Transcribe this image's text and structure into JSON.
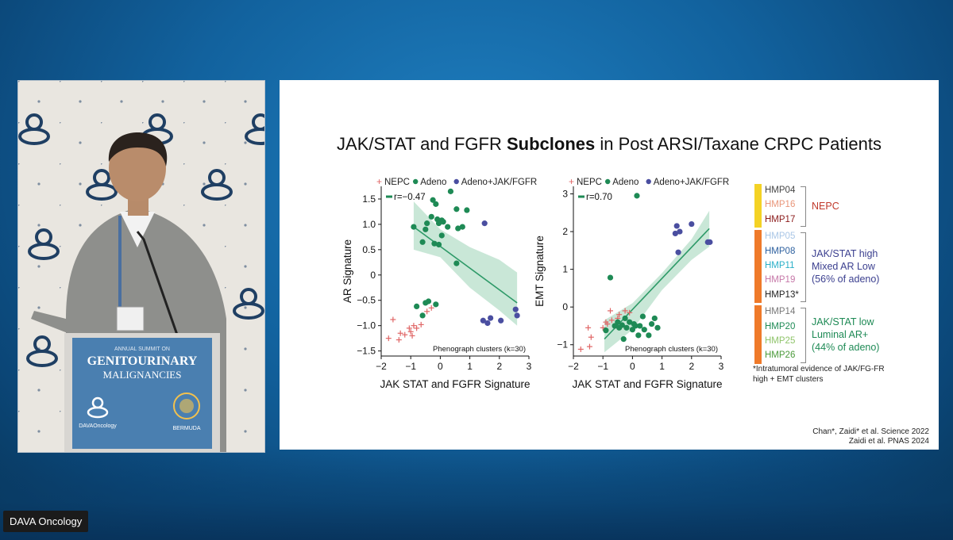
{
  "watermark": "DAVA Oncology",
  "podium": {
    "line1": "ANNUAL SUMMIT ON",
    "line2": "GENITOURINARY",
    "line3": "MALIGNANCIES",
    "logo_left": "DAVAOncology",
    "logo_right": "BERMUDA"
  },
  "slide": {
    "title_pre": "JAK/STAT and FGFR ",
    "title_bold": "Subclones",
    "title_post": " in Post ARSI/Taxane CRPC Patients",
    "footnote": "*Intratumoral evidence of JAK/FG-FR high + EMT clusters",
    "citation1": "Chan*, Zaidi* et al. Science 2022",
    "citation2": "Zaidi et al. PNAS 2024"
  },
  "colors": {
    "nepc": "#e06666",
    "adeno": "#1e8a55",
    "jak": "#4a4ea0",
    "fit": "#2e9a68",
    "band": "#bfe3d0"
  },
  "clusters": [
    {
      "label": "NEPC",
      "color": "#c0392b",
      "bar_color": "#f4d225",
      "items": [
        {
          "id": "HMP04",
          "color": "#444444"
        },
        {
          "id": "HMP16",
          "color": "#e9967a"
        },
        {
          "id": "HMP17",
          "color": "#8b1a1a"
        }
      ]
    },
    {
      "label_lines": [
        "JAK/STAT high",
        "Mixed AR Low",
        "(56% of adeno)"
      ],
      "color": "#3b3f8f",
      "bar_color": "#ef7a2a",
      "items": [
        {
          "id": "HMP05",
          "color": "#a9c6e6"
        },
        {
          "id": "HMP08",
          "color": "#2c5f9e"
        },
        {
          "id": "HMP11",
          "color": "#2ab0c8"
        },
        {
          "id": "HMP19",
          "color": "#c678a8"
        },
        {
          "id": "HMP13*",
          "color": "#222222"
        }
      ]
    },
    {
      "label_lines": [
        "JAK/STAT low",
        "Luminal AR+",
        "(44% of adeno)"
      ],
      "color": "#1e8a55",
      "bar_color": "#ef7a2a",
      "items": [
        {
          "id": "HMP14",
          "color": "#777777"
        },
        {
          "id": "HMP20",
          "color": "#1e8a55"
        },
        {
          "id": "HMP25",
          "color": "#8fc46a"
        },
        {
          "id": "HMP26",
          "color": "#4a9a3a"
        }
      ]
    }
  ],
  "chart_data": [
    {
      "type": "scatter",
      "xlabel": "JAK STAT and FGFR Signature",
      "ylabel": "AR Signature",
      "xlim": [
        -2,
        3
      ],
      "ylim": [
        -1.6,
        1.75
      ],
      "xticks": [
        -2,
        -1,
        0,
        1,
        2,
        3
      ],
      "xtick_labels": [
        "−2",
        "−1",
        "0",
        "1",
        "2",
        "3"
      ],
      "yticks": [
        -1.5,
        -1,
        -0.5,
        0,
        0.5,
        1,
        1.5
      ],
      "ytick_labels": [
        "−1.5",
        "−1.0",
        "−0.5",
        "0",
        "0.5",
        "1.0",
        "1.5"
      ],
      "legend": [
        "NEPC",
        "Adeno",
        "Adeno+JAK/FGFR"
      ],
      "corr_label": "r=−0.47",
      "annotation": "Phenograph clusters (k=30)",
      "fit": {
        "x": [
          -0.9,
          2.6
        ],
        "y": [
          0.95,
          -0.55
        ]
      },
      "band_upper": [
        [
          -0.9,
          1.45
        ],
        [
          0,
          0.9
        ],
        [
          1,
          0.55
        ],
        [
          2,
          0.3
        ],
        [
          2.6,
          0.05
        ]
      ],
      "band_lower": [
        [
          2.6,
          -1.0
        ],
        [
          2,
          -0.7
        ],
        [
          1,
          -0.25
        ],
        [
          0,
          0.35
        ],
        [
          -0.9,
          0.5
        ]
      ],
      "series": [
        {
          "name": "NEPC",
          "marker": "plus",
          "color": "#e06666",
          "points": [
            [
              -1.75,
              -1.25
            ],
            [
              -1.6,
              -0.88
            ],
            [
              -1.4,
              -1.28
            ],
            [
              -1.35,
              -1.15
            ],
            [
              -1.2,
              -1.18
            ],
            [
              -1.05,
              -1.05
            ],
            [
              -1.0,
              -1.12
            ],
            [
              -0.95,
              -1.2
            ],
            [
              -0.9,
              -1.0
            ],
            [
              -0.8,
              -1.05
            ],
            [
              -0.65,
              -0.98
            ],
            [
              -0.45,
              -0.72
            ],
            [
              -0.3,
              -0.65
            ]
          ]
        },
        {
          "name": "Adeno",
          "marker": "dot",
          "color": "#1e8a55",
          "points": [
            [
              0.35,
              1.65
            ],
            [
              -0.25,
              1.48
            ],
            [
              -0.15,
              1.4
            ],
            [
              0.55,
              1.3
            ],
            [
              0.9,
              1.28
            ],
            [
              -0.3,
              1.15
            ],
            [
              -0.1,
              1.1
            ],
            [
              0.05,
              1.08
            ],
            [
              -0.05,
              1.02
            ],
            [
              0.1,
              1.05
            ],
            [
              -0.45,
              1.02
            ],
            [
              -0.9,
              0.95
            ],
            [
              -0.5,
              0.9
            ],
            [
              0.25,
              0.95
            ],
            [
              0.6,
              0.92
            ],
            [
              0.75,
              0.95
            ],
            [
              -0.6,
              0.65
            ],
            [
              -0.2,
              0.62
            ],
            [
              -0.05,
              0.6
            ],
            [
              0.05,
              0.78
            ],
            [
              0.55,
              0.23
            ],
            [
              -0.5,
              -0.55
            ],
            [
              -0.4,
              -0.52
            ],
            [
              -0.15,
              -0.58
            ],
            [
              -0.8,
              -0.62
            ],
            [
              -0.6,
              -0.8
            ]
          ]
        },
        {
          "name": "Adeno+JAK/FGFR",
          "marker": "dot",
          "color": "#4a4ea0",
          "points": [
            [
              1.5,
              1.02
            ],
            [
              1.45,
              -0.9
            ],
            [
              1.6,
              -0.95
            ],
            [
              1.7,
              -0.85
            ],
            [
              2.05,
              -0.9
            ],
            [
              2.55,
              -0.68
            ],
            [
              2.6,
              -0.8
            ]
          ]
        }
      ]
    },
    {
      "type": "scatter",
      "xlabel": "JAK STAT and FGFR Signature",
      "ylabel": "EMT Signature",
      "xlim": [
        -2,
        3
      ],
      "ylim": [
        -1.3,
        3.2
      ],
      "xticks": [
        -2,
        -1,
        0,
        1,
        2,
        3
      ],
      "xtick_labels": [
        "−2",
        "−1",
        "0",
        "1",
        "2",
        "3"
      ],
      "yticks": [
        -1,
        0,
        1,
        2,
        3
      ],
      "ytick_labels": [
        "−1",
        "0",
        "1",
        "2",
        "3"
      ],
      "legend": [
        "NEPC",
        "Adeno",
        "Adeno+JAK/FGFR"
      ],
      "corr_label": "r=0.70",
      "annotation": "Phenograph clusters (k=30)",
      "fit": {
        "x": [
          -0.95,
          2.6
        ],
        "y": [
          -0.85,
          2.08
        ]
      },
      "band_upper": [
        [
          -0.95,
          -0.35
        ],
        [
          0,
          0.1
        ],
        [
          1,
          0.9
        ],
        [
          2,
          1.8
        ],
        [
          2.6,
          2.55
        ]
      ],
      "band_lower": [
        [
          2.6,
          1.6
        ],
        [
          2,
          1.25
        ],
        [
          1,
          0.45
        ],
        [
          0,
          -0.6
        ],
        [
          -0.95,
          -1.2
        ]
      ],
      "series": [
        {
          "name": "NEPC",
          "marker": "plus",
          "color": "#e06666",
          "points": [
            [
              -1.75,
              -1.12
            ],
            [
              -1.5,
              -0.55
            ],
            [
              -1.45,
              -1.05
            ],
            [
              -1.4,
              -0.8
            ],
            [
              -1.0,
              -0.55
            ],
            [
              -0.9,
              -0.4
            ],
            [
              -0.85,
              -0.45
            ],
            [
              -0.75,
              -0.1
            ],
            [
              -0.7,
              -0.35
            ],
            [
              -0.45,
              -0.2
            ],
            [
              -0.25,
              -0.1
            ],
            [
              -0.1,
              -0.15
            ],
            [
              -0.5,
              -0.3
            ]
          ]
        },
        {
          "name": "Adeno",
          "marker": "dot",
          "color": "#1e8a55",
          "points": [
            [
              0.15,
              2.95
            ],
            [
              -0.75,
              0.78
            ],
            [
              -0.9,
              -0.62
            ],
            [
              -0.6,
              -0.5
            ],
            [
              -0.5,
              -0.4
            ],
            [
              -0.45,
              -0.55
            ],
            [
              -0.35,
              -0.48
            ],
            [
              -0.25,
              -0.3
            ],
            [
              -0.2,
              -0.55
            ],
            [
              -0.1,
              -0.4
            ],
            [
              0.0,
              -0.6
            ],
            [
              0.05,
              -0.45
            ],
            [
              0.1,
              -0.5
            ],
            [
              0.25,
              -0.5
            ],
            [
              0.35,
              -0.25
            ],
            [
              0.4,
              -0.6
            ],
            [
              0.55,
              -0.75
            ],
            [
              0.65,
              -0.45
            ],
            [
              0.75,
              -0.3
            ],
            [
              0.85,
              -0.55
            ],
            [
              -0.3,
              -0.85
            ],
            [
              0.2,
              -0.75
            ]
          ]
        },
        {
          "name": "Adeno+JAK/FGFR",
          "marker": "dot",
          "color": "#4a4ea0",
          "points": [
            [
              1.5,
              2.15
            ],
            [
              1.45,
              1.95
            ],
            [
              1.6,
              2.0
            ],
            [
              1.55,
              1.45
            ],
            [
              2.0,
              2.2
            ],
            [
              2.55,
              1.72
            ],
            [
              2.62,
              1.72
            ]
          ]
        }
      ]
    }
  ]
}
